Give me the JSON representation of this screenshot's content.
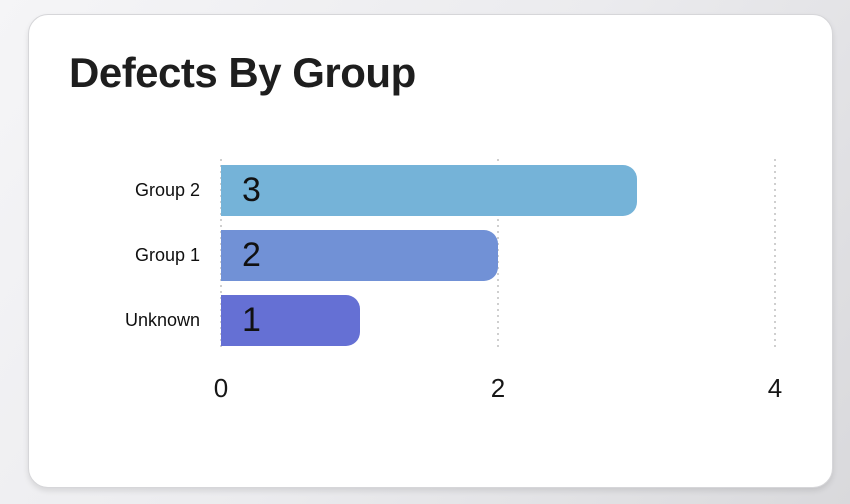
{
  "card": {
    "title": "Defects By Group"
  },
  "chart_data": {
    "type": "bar",
    "orientation": "horizontal",
    "title": "Defects By Group",
    "categories": [
      "Group 2",
      "Group 1",
      "Unknown"
    ],
    "values": [
      3,
      2,
      1
    ],
    "bar_colors": [
      "#75b3d8",
      "#7191d6",
      "#6570d4"
    ],
    "xticks": [
      0,
      2,
      4
    ],
    "xlim": [
      0,
      4
    ],
    "xlabel": "",
    "ylabel": "",
    "grid": "vertical-dotted",
    "gridline_color": "#cfcfcf",
    "legend": "none",
    "value_label_color": "#111111"
  }
}
